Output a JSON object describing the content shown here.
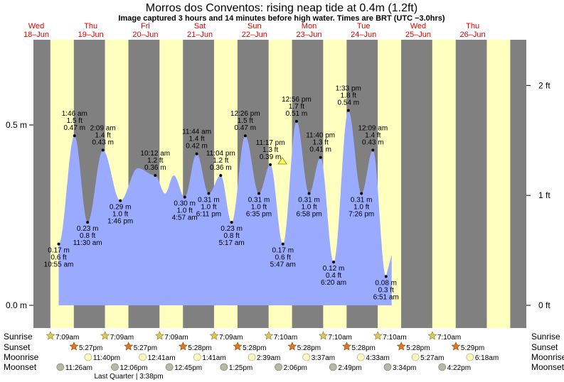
{
  "title": "Morros dos Conventos: rising  neap tide at 0.4m (1.2ft)",
  "subtitle": "Image captured 3 hours and 14 minutes before high water. Times are BRT (UTC −3.0hrs)",
  "days": [
    {
      "weekday": "Wed",
      "date": "18–Jun"
    },
    {
      "weekday": "Thu",
      "date": "19–Jun"
    },
    {
      "weekday": "Fri",
      "date": "20–Jun"
    },
    {
      "weekday": "Sat",
      "date": "21–Jun"
    },
    {
      "weekday": "Sun",
      "date": "22–Jun"
    },
    {
      "weekday": "Mon",
      "date": "23–Jun"
    },
    {
      "weekday": "Tue",
      "date": "24–Jun"
    },
    {
      "weekday": "Wed",
      "date": "25–Jun"
    },
    {
      "weekday": "Thu",
      "date": "26–Jun"
    }
  ],
  "chart_data": {
    "type": "area",
    "y_left_ticks": [
      {
        "value": 0.0,
        "label": "0.0 m"
      },
      {
        "value": 0.5,
        "label": "0.5 m"
      }
    ],
    "y_right_ticks": [
      {
        "value": 0,
        "label": "0 ft"
      },
      {
        "value": 1,
        "label": "1 ft"
      },
      {
        "value": 2,
        "label": "2 ft"
      }
    ],
    "ylim_m": [
      -0.055,
      0.725
    ],
    "x_range_days": [
      18.0,
      26.5
    ],
    "series": [
      {
        "values": [
          {
            "t": 18.45,
            "h": 0.17,
            "lines": [
              "0.17 m",
              "0.6 ft",
              "10:55 am"
            ],
            "pos": "below"
          },
          {
            "t": 18.74,
            "h": 0.47,
            "lines": [
              "1:46 am",
              "1.5 ft",
              "0.47 m"
            ],
            "pos": "above"
          },
          {
            "t": 18.98,
            "h": 0.23,
            "lines": [
              "0.23 m",
              "0.8 ft",
              "11:30 am"
            ],
            "pos": "below"
          },
          {
            "t": 19.26,
            "h": 0.43,
            "lines": [
              "2:09 am",
              "1.4 ft",
              "0.43 m"
            ],
            "pos": "above"
          },
          {
            "t": 19.58,
            "h": 0.29,
            "lines": [
              "0.29 m",
              "1.0 ft",
              "1:46 pm"
            ],
            "pos": "below"
          },
          {
            "t": 19.9,
            "h": 0.38
          },
          {
            "t": 20.22,
            "h": 0.36,
            "lines": [
              "10:12 am",
              "1.2 ft",
              "0.36 m"
            ],
            "pos": "above"
          },
          {
            "t": 20.4,
            "h": 0.31
          },
          {
            "t": 20.56,
            "h": 0.36
          },
          {
            "t": 20.76,
            "h": 0.3,
            "lines": [
              "0.30 m",
              "1.0 ft",
              "4:57 am"
            ],
            "pos": "below"
          },
          {
            "t": 20.98,
            "h": 0.42,
            "lines": [
              "11:44 am",
              "1.4 ft",
              "0.42 m"
            ],
            "pos": "above"
          },
          {
            "t": 21.2,
            "h": 0.31,
            "lines": [
              "0.31 m",
              "1.0 ft",
              "6:11 pm"
            ],
            "pos": "below"
          },
          {
            "t": 21.42,
            "h": 0.36,
            "lines": [
              "11:04 pm",
              "1.2 ft",
              "0.36 m"
            ],
            "pos": "above"
          },
          {
            "t": 21.62,
            "h": 0.23,
            "lines": [
              "0.23 m",
              "0.8 ft",
              "5:17 am"
            ],
            "pos": "below"
          },
          {
            "t": 21.87,
            "h": 0.47,
            "lines": [
              "12:26 pm",
              "1.5 ft",
              "0.47 m"
            ],
            "pos": "above"
          },
          {
            "t": 22.12,
            "h": 0.31,
            "lines": [
              "0.31 m",
              "1.0 ft",
              "6:35 pm"
            ],
            "pos": "below"
          },
          {
            "t": 22.33,
            "h": 0.39,
            "lines": [
              "11:17 pm",
              "1.3 ft",
              "0.39 m"
            ],
            "pos": "above"
          },
          {
            "t": 22.56,
            "h": 0.17,
            "lines": [
              "0.17 m",
              "0.6 ft",
              "5:47 am"
            ],
            "pos": "below"
          },
          {
            "t": 22.81,
            "h": 0.51,
            "lines": [
              "12:56 pm",
              "1.7 ft",
              "0.51 m"
            ],
            "pos": "above"
          },
          {
            "t": 23.04,
            "h": 0.31,
            "lines": [
              "0.31 m",
              "1.0 ft",
              "6:58 pm"
            ],
            "pos": "below"
          },
          {
            "t": 23.25,
            "h": 0.41,
            "lines": [
              "11:40 pm",
              "1.3 ft",
              "0.41 m"
            ],
            "pos": "above"
          },
          {
            "t": 23.49,
            "h": 0.12,
            "lines": [
              "0.12 m",
              "0.4 ft",
              "6:20 am"
            ],
            "pos": "below"
          },
          {
            "t": 23.76,
            "h": 0.54,
            "lines": [
              "1:33 pm",
              "1.8 ft",
              "0.54 m"
            ],
            "pos": "above"
          },
          {
            "t": 24.0,
            "h": 0.31,
            "lines": [
              "0.31 m",
              "1.0 ft",
              "7:26 pm"
            ],
            "pos": "below"
          },
          {
            "t": 24.21,
            "h": 0.43,
            "lines": [
              "12:09 am",
              "1.4 ft",
              "0.43 m"
            ],
            "pos": "above"
          },
          {
            "t": 24.45,
            "h": 0.08,
            "lines": [
              "0.08 m",
              "0.3 ft",
              "6:51 am"
            ],
            "pos": "below"
          }
        ]
      }
    ],
    "current_height_m": 0.4,
    "colors": {
      "night": "#808080",
      "day": "#ffffc0",
      "water": "#9aabff"
    }
  },
  "rows": {
    "sunrise": {
      "label": "Sunrise",
      "times": [
        "7:09am",
        "7:09am",
        "7:09am",
        "7:09am",
        "7:10am",
        "7:10am",
        "7:10am",
        "7:10am"
      ]
    },
    "sunset": {
      "label": "Sunset",
      "times": [
        "5:27pm",
        "5:27pm",
        "5:28pm",
        "5:28pm",
        "5:28pm",
        "5:28pm",
        "5:28pm",
        "5:29pm"
      ]
    },
    "moonrise": {
      "label": "Moonrise",
      "times": [
        "11:40pm",
        "12:41am",
        "1:41am",
        "2:39am",
        "3:37am",
        "4:33am",
        "5:27am",
        "6:18am"
      ]
    },
    "moonset": {
      "label": "Moonset",
      "times": [
        "11:26am",
        "12:06pm",
        "12:45pm",
        "1:25pm",
        "2:06pm",
        "2:49pm",
        "3:34pm",
        "4:22pm"
      ]
    }
  },
  "moon_phase": "Last Quarter | 3:38pm"
}
